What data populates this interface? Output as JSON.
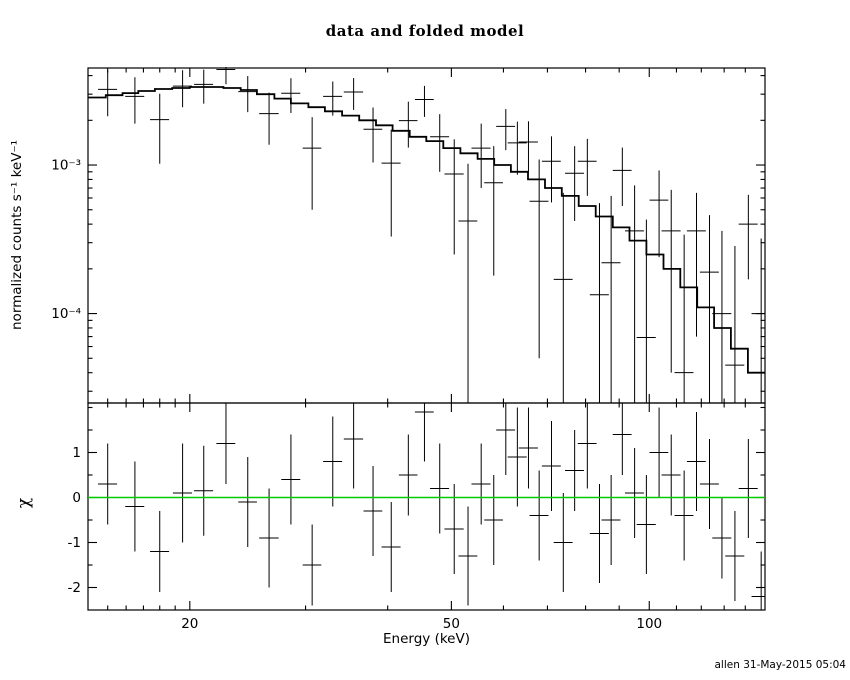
{
  "chart_data": {
    "type": "scatter",
    "title": "data and folded model",
    "xlabel": "Energy (keV)",
    "footer": "allen 31-May-2015 05:04",
    "xscale": "log",
    "xlim": [
      14,
      150
    ],
    "xticks_major": [
      {
        "v": 20,
        "label": "20"
      },
      {
        "v": 50,
        "label": "50"
      },
      {
        "v": 100,
        "label": "100"
      }
    ],
    "xticks_minor": [
      15,
      16,
      17,
      18,
      19,
      30,
      40,
      60,
      70,
      80,
      90,
      110,
      120,
      130,
      140
    ],
    "panels": [
      {
        "name": "spectrum",
        "ylabel": "normalized counts s⁻¹ keV⁻¹",
        "yscale": "log",
        "ylim": [
          2.5e-05,
          0.0045
        ],
        "yticks_major": [
          {
            "v": 0.0001,
            "label": "10⁻⁴"
          },
          {
            "v": 0.001,
            "label": "10⁻³"
          }
        ],
        "yticks_minor": [
          3e-05,
          4e-05,
          5e-05,
          6e-05,
          7e-05,
          8e-05,
          9e-05,
          0.0002,
          0.0003,
          0.0004,
          0.0005,
          0.0006,
          0.0007,
          0.0008,
          0.0009,
          0.002,
          0.003,
          0.004
        ],
        "model_bins": {
          "edges": [
            14,
            14.9,
            15.8,
            16.7,
            17.7,
            18.8,
            20.0,
            21.2,
            22.5,
            23.9,
            25.3,
            26.9,
            28.5,
            30.3,
            32.1,
            34.1,
            36.2,
            38.4,
            40.7,
            43.2,
            45.8,
            48.6,
            51.6,
            54.8,
            58.1,
            61.6,
            65.4,
            69.4,
            73.6,
            78.1,
            82.9,
            88.0,
            93.3,
            99.0,
            105.1,
            111.5,
            118.3,
            125.5,
            133.1,
            141.3,
            150.0
          ],
          "values": [
            0.00285,
            0.00295,
            0.00305,
            0.00315,
            0.00325,
            0.0033,
            0.00335,
            0.00335,
            0.0033,
            0.0032,
            0.003,
            0.0028,
            0.0026,
            0.00245,
            0.0023,
            0.00215,
            0.002,
            0.00185,
            0.0017,
            0.00155,
            0.00145,
            0.0013,
            0.0012,
            0.0011,
            0.001,
            0.0009,
            0.0008,
            0.0007,
            0.00062,
            0.00053,
            0.00045,
            0.00038,
            0.00031,
            0.00025,
            0.0002,
            0.00015,
            0.00011,
            8e-05,
            5.8e-05,
            4e-05
          ]
        },
        "points_e_de_y_dy": [
          [
            15.0,
            0.5,
            0.00323,
            0.0011
          ],
          [
            16.5,
            0.55,
            0.0029,
            0.001
          ],
          [
            18.0,
            0.6,
            0.00202,
            0.001
          ],
          [
            19.5,
            0.65,
            0.0034,
            0.00095
          ],
          [
            21.0,
            0.7,
            0.00349,
            0.0009
          ],
          [
            22.7,
            0.75,
            0.0044,
            0.0009
          ],
          [
            24.5,
            0.8,
            0.00312,
            0.00085
          ],
          [
            26.4,
            0.9,
            0.00222,
            0.00085
          ],
          [
            28.5,
            0.95,
            0.00304,
            0.0008
          ],
          [
            30.7,
            1.0,
            0.0013,
            0.0008
          ],
          [
            33.0,
            1.1,
            0.0029,
            0.00075
          ],
          [
            35.5,
            1.2,
            0.0031,
            0.00075
          ],
          [
            38.0,
            1.25,
            0.00174,
            0.0007
          ],
          [
            40.5,
            1.35,
            0.00103,
            0.0007
          ],
          [
            43.0,
            1.4,
            0.00199,
            0.00068
          ],
          [
            45.5,
            1.5,
            0.00276,
            0.00065
          ],
          [
            48.0,
            1.6,
            0.00155,
            0.00065
          ],
          [
            50.5,
            1.7,
            0.00087,
            0.00062
          ],
          [
            53.0,
            1.75,
            0.00042,
            0.0006
          ],
          [
            55.5,
            1.85,
            0.0013,
            0.0006
          ],
          [
            58.0,
            1.9,
            0.00076,
            0.00058
          ],
          [
            60.5,
            2.0,
            0.00182,
            0.00056
          ],
          [
            63.0,
            2.1,
            0.00141,
            0.00055
          ],
          [
            65.5,
            2.2,
            0.00143,
            0.00054
          ],
          [
            68.0,
            2.25,
            0.00057,
            0.00052
          ],
          [
            71.0,
            2.35,
            0.00106,
            0.0005
          ],
          [
            74.0,
            2.45,
            0.00017,
            0.00048
          ],
          [
            77.0,
            2.55,
            0.00088,
            0.00046
          ],
          [
            80.5,
            2.65,
            0.00106,
            0.00044
          ],
          [
            84.0,
            2.8,
            0.000134,
            0.00042
          ],
          [
            87.5,
            2.9,
            0.00022,
            0.0004
          ],
          [
            91.0,
            3.0,
            0.00092,
            0.00039
          ],
          [
            95.0,
            3.15,
            0.00036,
            0.00037
          ],
          [
            99.0,
            3.3,
            6.9e-05,
            0.00036
          ],
          [
            103.5,
            3.4,
            0.00058,
            0.00034
          ],
          [
            108.0,
            3.6,
            0.00036,
            0.00032
          ],
          [
            113.0,
            3.75,
            4e-05,
            0.0003
          ],
          [
            118.0,
            3.9,
            0.00036,
            0.00029
          ],
          [
            123.5,
            4.1,
            0.00019,
            0.00027
          ],
          [
            129.0,
            4.3,
            0.0001,
            0.00026
          ],
          [
            135.0,
            4.5,
            4.5e-05,
            0.00024
          ],
          [
            141.5,
            4.7,
            0.0004,
            0.00023
          ],
          [
            148.0,
            4.9,
            0.0001,
            0.00022
          ]
        ]
      },
      {
        "name": "residuals",
        "ylabel": "χ",
        "yscale": "linear",
        "ylim": [
          -2.5,
          2.1
        ],
        "zero_line_color": "#00cc00",
        "yticks_major": [
          {
            "v": 1,
            "label": "1"
          },
          {
            "v": 0,
            "label": "0"
          },
          {
            "v": -1,
            "label": "-1"
          },
          {
            "v": -2,
            "label": "-2"
          }
        ],
        "yticks_minor": [
          -1.5,
          -0.5,
          0.5,
          1.5,
          2.0
        ],
        "points_e_de_chi_dchi": [
          [
            15.0,
            0.5,
            0.3,
            0.9
          ],
          [
            16.5,
            0.55,
            -0.2,
            1.0
          ],
          [
            18.0,
            0.6,
            -1.2,
            0.9
          ],
          [
            19.5,
            0.65,
            0.1,
            1.1
          ],
          [
            21.0,
            0.7,
            0.15,
            1.0
          ],
          [
            22.7,
            0.75,
            1.2,
            0.9
          ],
          [
            24.5,
            0.8,
            -0.1,
            1.0
          ],
          [
            26.4,
            0.9,
            -0.9,
            1.1
          ],
          [
            28.5,
            0.95,
            0.4,
            1.0
          ],
          [
            30.7,
            1.0,
            -1.5,
            0.9
          ],
          [
            33.0,
            1.1,
            0.8,
            1.0
          ],
          [
            35.5,
            1.2,
            1.3,
            1.1
          ],
          [
            38.0,
            1.25,
            -0.3,
            1.0
          ],
          [
            40.5,
            1.35,
            -1.1,
            1.0
          ],
          [
            43.0,
            1.4,
            0.5,
            0.9
          ],
          [
            45.5,
            1.5,
            1.9,
            1.1
          ],
          [
            48.0,
            1.6,
            0.2,
            1.0
          ],
          [
            50.5,
            1.7,
            -0.7,
            1.0
          ],
          [
            53.0,
            1.75,
            -1.3,
            1.1
          ],
          [
            55.5,
            1.85,
            0.3,
            0.9
          ],
          [
            58.0,
            1.9,
            -0.5,
            1.0
          ],
          [
            60.5,
            2.0,
            1.5,
            1.0
          ],
          [
            63.0,
            2.1,
            0.9,
            1.1
          ],
          [
            65.5,
            2.2,
            1.1,
            0.9
          ],
          [
            68.0,
            2.25,
            -0.4,
            1.0
          ],
          [
            71.0,
            2.35,
            0.7,
            1.0
          ],
          [
            74.0,
            2.45,
            -1.0,
            1.1
          ],
          [
            77.0,
            2.55,
            0.6,
            0.9
          ],
          [
            80.5,
            2.65,
            1.2,
            1.0
          ],
          [
            84.0,
            2.8,
            -0.8,
            1.1
          ],
          [
            87.5,
            2.9,
            -0.5,
            1.0
          ],
          [
            91.0,
            3.0,
            1.4,
            0.9
          ],
          [
            95.0,
            3.15,
            0.1,
            1.0
          ],
          [
            99.0,
            3.3,
            -0.6,
            1.1
          ],
          [
            103.5,
            3.4,
            1.0,
            1.0
          ],
          [
            108.0,
            3.6,
            0.5,
            0.9
          ],
          [
            113.0,
            3.75,
            -0.4,
            1.0
          ],
          [
            118.0,
            3.9,
            0.8,
            1.1
          ],
          [
            123.5,
            4.1,
            0.3,
            1.0
          ],
          [
            129.0,
            4.3,
            -0.9,
            0.9
          ],
          [
            135.0,
            4.5,
            -1.3,
            1.0
          ],
          [
            141.5,
            4.7,
            0.2,
            1.1
          ],
          [
            148.0,
            4.9,
            -2.2,
            1.0
          ]
        ]
      }
    ]
  }
}
